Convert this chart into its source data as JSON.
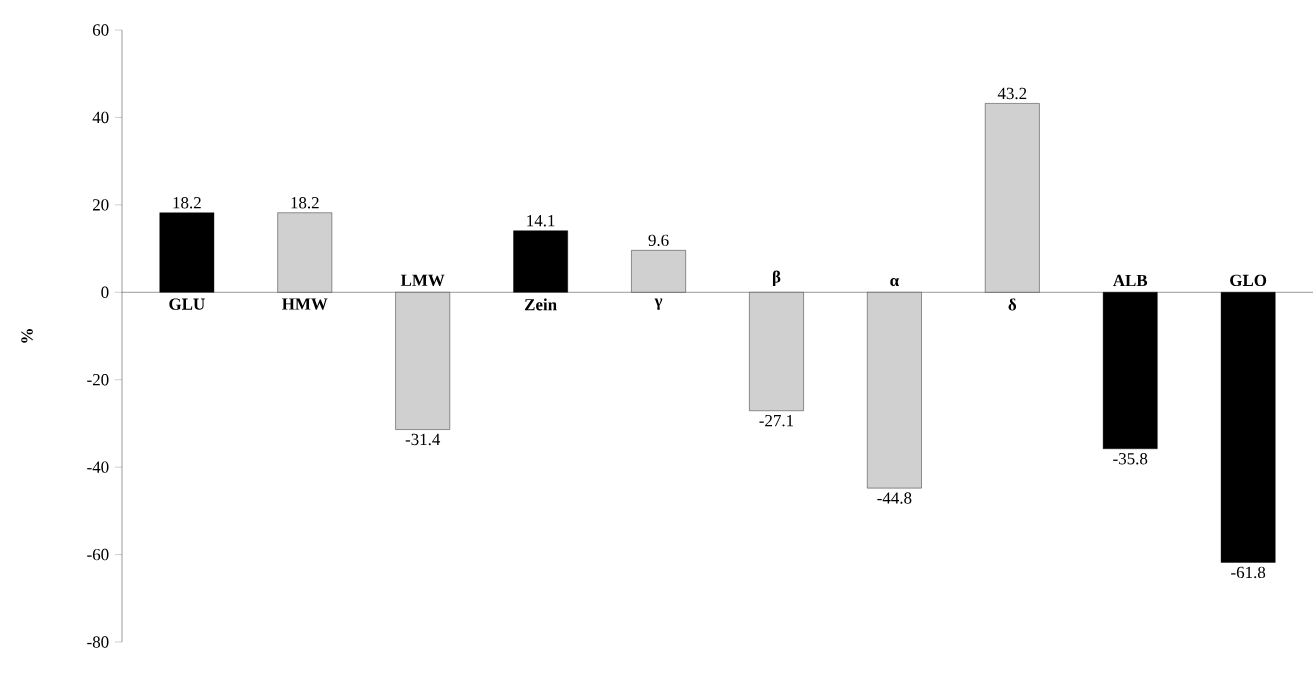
{
  "chart_data": {
    "type": "bar",
    "ylabel": "%",
    "categories": [
      "GLU",
      "HMW",
      "LMW",
      "Zein",
      "γ",
      "β",
      "α",
      "δ",
      "ALB",
      "GLO"
    ],
    "values": [
      18.2,
      18.2,
      -31.4,
      14.1,
      9.6,
      -27.1,
      -44.8,
      43.2,
      -35.8,
      -61.8
    ],
    "colors": [
      "#000000",
      "#d0d0d0",
      "#d0d0d0",
      "#000000",
      "#d0d0d0",
      "#d0d0d0",
      "#d0d0d0",
      "#d0d0d0",
      "#000000",
      "#000000"
    ],
    "ylim": [
      -80,
      60
    ],
    "yticks": [
      -80,
      -60,
      -40,
      -20,
      0,
      20,
      40,
      60
    ],
    "data_labels": true
  }
}
